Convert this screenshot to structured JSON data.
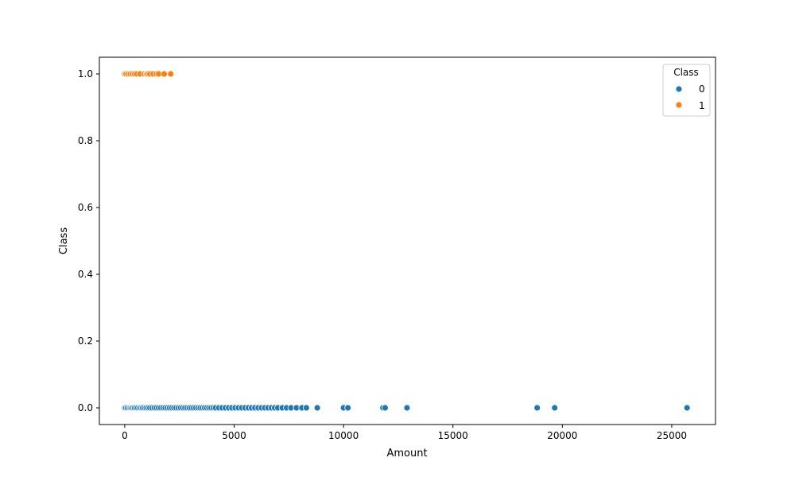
{
  "chart_data": {
    "type": "scatter",
    "xlabel": "Amount",
    "ylabel": "Class",
    "xlim": [
      -1160,
      27000
    ],
    "ylim": [
      -0.05,
      1.05
    ],
    "xticks": [
      0,
      5000,
      10000,
      15000,
      20000,
      25000
    ],
    "yticks": [
      0.0,
      0.2,
      0.4,
      0.6,
      0.8,
      1.0
    ],
    "xtick_labels": [
      "0",
      "5000",
      "10000",
      "15000",
      "20000",
      "25000"
    ],
    "ytick_labels": [
      "0.0",
      "0.2",
      "0.4",
      "0.6",
      "0.8",
      "1.0"
    ],
    "legend": {
      "title": "Class",
      "position": "top-right"
    },
    "grid": false,
    "series": [
      {
        "name": "0",
        "color": "#1f77b4",
        "x": [
          0,
          50,
          120,
          200,
          260,
          320,
          380,
          450,
          520,
          600,
          680,
          750,
          820,
          900,
          980,
          1060,
          1150,
          1250,
          1350,
          1450,
          1550,
          1650,
          1750,
          1850,
          1950,
          2050,
          2150,
          2250,
          2350,
          2450,
          2550,
          2650,
          2750,
          2850,
          2950,
          3050,
          3150,
          3250,
          3350,
          3450,
          3550,
          3650,
          3750,
          3850,
          3950,
          4050,
          4150,
          4300,
          4450,
          4600,
          4750,
          4900,
          5050,
          5200,
          5350,
          5500,
          5650,
          5800,
          5950,
          6100,
          6250,
          6400,
          6550,
          6700,
          6850,
          7000,
          7200,
          7400,
          7600,
          7850,
          8100,
          8300,
          8800,
          10000,
          10200,
          11800,
          11900,
          12900,
          18850,
          19650,
          25700
        ],
        "y": [
          0,
          0,
          0,
          0,
          0,
          0,
          0,
          0,
          0,
          0,
          0,
          0,
          0,
          0,
          0,
          0,
          0,
          0,
          0,
          0,
          0,
          0,
          0,
          0,
          0,
          0,
          0,
          0,
          0,
          0,
          0,
          0,
          0,
          0,
          0,
          0,
          0,
          0,
          0,
          0,
          0,
          0,
          0,
          0,
          0,
          0,
          0,
          0,
          0,
          0,
          0,
          0,
          0,
          0,
          0,
          0,
          0,
          0,
          0,
          0,
          0,
          0,
          0,
          0,
          0,
          0,
          0,
          0,
          0,
          0,
          0,
          0,
          0,
          0,
          0,
          0,
          0,
          0,
          0,
          0,
          0
        ]
      },
      {
        "name": "1",
        "color": "#ff7f0e",
        "x": [
          0,
          60,
          150,
          250,
          350,
          450,
          550,
          700,
          900,
          1000,
          1050,
          1150,
          1300,
          1450,
          1550,
          1800,
          2100
        ],
        "y": [
          1,
          1,
          1,
          1,
          1,
          1,
          1,
          1,
          1,
          1,
          1,
          1,
          1,
          1,
          1,
          1,
          1
        ]
      }
    ]
  }
}
